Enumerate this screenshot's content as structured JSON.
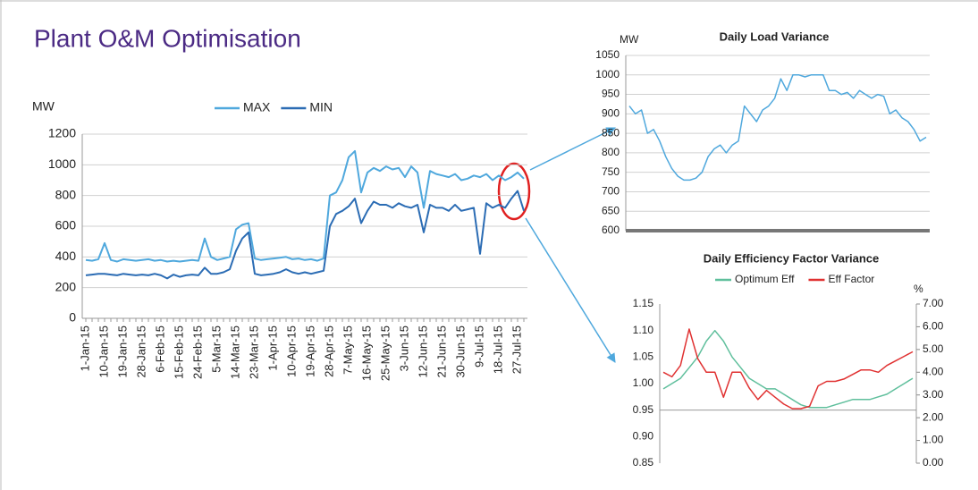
{
  "title": "Plant O&M Optimisation",
  "chart_data": [
    {
      "type": "line",
      "y_label": "MW",
      "legend": "top",
      "grid": true,
      "ylim": [
        0,
        1200
      ],
      "yticks": [
        0,
        200,
        400,
        600,
        800,
        1000,
        1200
      ],
      "categories": [
        "1-Jan-15",
        null,
        null,
        "10-Jan-15",
        null,
        null,
        "19-Jan-15",
        null,
        null,
        "28-Jan-15",
        null,
        null,
        "6-Feb-15",
        null,
        null,
        "15-Feb-15",
        null,
        null,
        "24-Feb-15",
        null,
        null,
        "5-Mar-15",
        null,
        null,
        "14-Mar-15",
        null,
        null,
        "23-Mar-15",
        null,
        null,
        "1-Apr-15",
        null,
        null,
        "10-Apr-15",
        null,
        null,
        "19-Apr-15",
        null,
        null,
        "28-Apr-15",
        null,
        null,
        "7-May-15",
        null,
        null,
        "16-May-15",
        null,
        null,
        "25-May-15",
        null,
        null,
        "3-Jun-15",
        null,
        null,
        "12-Jun-15",
        null,
        null,
        "21-Jun-15",
        null,
        null,
        "30-Jun-15",
        null,
        null,
        "9-Jul-15",
        null,
        null,
        "18-Jul-15",
        null,
        null,
        "27-Jul-15",
        null
      ],
      "series": [
        {
          "name": "MAX",
          "color": "#4fa8dd",
          "values": [
            380,
            375,
            385,
            490,
            380,
            370,
            385,
            380,
            375,
            380,
            385,
            375,
            380,
            370,
            375,
            370,
            375,
            380,
            375,
            520,
            400,
            380,
            390,
            400,
            580,
            610,
            620,
            390,
            380,
            385,
            390,
            395,
            400,
            385,
            390,
            380,
            385,
            375,
            390,
            800,
            820,
            900,
            1050,
            1090,
            820,
            950,
            980,
            960,
            990,
            970,
            980,
            920,
            990,
            950,
            720,
            960,
            940,
            930,
            920,
            940,
            900,
            910,
            930,
            920,
            940,
            900,
            930,
            900,
            920,
            950,
            910
          ]
        },
        {
          "name": "MIN",
          "color": "#2b6cb4",
          "values": [
            280,
            285,
            290,
            290,
            285,
            280,
            290,
            285,
            280,
            285,
            280,
            290,
            280,
            260,
            285,
            270,
            280,
            285,
            280,
            330,
            290,
            290,
            300,
            320,
            440,
            520,
            560,
            290,
            280,
            285,
            290,
            300,
            320,
            300,
            290,
            300,
            290,
            300,
            310,
            600,
            680,
            700,
            730,
            780,
            620,
            700,
            760,
            740,
            740,
            720,
            750,
            730,
            720,
            740,
            560,
            740,
            720,
            720,
            700,
            740,
            700,
            710,
            720,
            420,
            750,
            720,
            740,
            720,
            780,
            830,
            700
          ]
        }
      ]
    },
    {
      "type": "line",
      "title": "Daily Load Variance",
      "y_label": "MW",
      "grid": true,
      "color": "#4fa8dd",
      "ylim": [
        600,
        1050
      ],
      "yticks": [
        600,
        650,
        700,
        750,
        800,
        850,
        900,
        950,
        1000,
        1050
      ],
      "values": [
        920,
        900,
        910,
        850,
        860,
        830,
        790,
        760,
        740,
        730,
        730,
        735,
        750,
        790,
        810,
        820,
        800,
        820,
        830,
        920,
        900,
        880,
        910,
        920,
        940,
        990,
        960,
        1000,
        1000,
        995,
        1000,
        1000,
        1000,
        960,
        960,
        950,
        955,
        940,
        960,
        950,
        940,
        950,
        945,
        900,
        910,
        890,
        880,
        860,
        830,
        840
      ]
    },
    {
      "type": "line",
      "title": "Daily Efficiency Factor Variance",
      "y2_label": "%",
      "legend": "top",
      "grid": false,
      "x_axis_crossing": 0.95,
      "ylim": [
        0.85,
        1.15
      ],
      "yticks": [
        {
          "value": 0.85,
          "label": "0.85"
        },
        {
          "value": 0.9,
          "label": "0.90"
        },
        {
          "value": 0.95,
          "label": "0.95"
        },
        {
          "value": 1,
          "label": "1.00"
        },
        {
          "value": 1.05,
          "label": "1.05"
        },
        {
          "value": 1.1,
          "label": "1.10"
        },
        {
          "value": 1.15,
          "label": "1.15"
        }
      ],
      "y2lim": [
        0,
        7
      ],
      "y2ticks": [
        {
          "value": 0,
          "label": "0.00"
        },
        {
          "value": 1,
          "label": "1.00"
        },
        {
          "value": 2,
          "label": "2.00"
        },
        {
          "value": 3,
          "label": "3.00"
        },
        {
          "value": 4,
          "label": "4.00"
        },
        {
          "value": 5,
          "label": "5.00"
        },
        {
          "value": 6,
          "label": "6.00"
        },
        {
          "value": 7,
          "label": "7.00"
        }
      ],
      "series": [
        {
          "name": "Optimum Eff",
          "color": "#5fbf9c",
          "values": [
            0.99,
            1.0,
            1.01,
            1.03,
            1.05,
            1.08,
            1.1,
            1.08,
            1.05,
            1.03,
            1.01,
            1.0,
            0.99,
            0.99,
            0.98,
            0.97,
            0.96,
            0.955,
            0.955,
            0.955,
            0.96,
            0.965,
            0.97,
            0.97,
            0.97,
            0.975,
            0.98,
            0.99,
            1.0,
            1.01
          ]
        },
        {
          "name": "Eff Factor",
          "color": "#e03131",
          "axis": "y2",
          "values": [
            4.0,
            3.8,
            4.3,
            5.9,
            4.6,
            4.0,
            4.0,
            2.9,
            4.0,
            4.0,
            3.3,
            2.8,
            3.2,
            2.9,
            2.6,
            2.4,
            2.4,
            2.5,
            3.4,
            3.6,
            3.6,
            3.7,
            3.9,
            4.1,
            4.1,
            4.0,
            4.3,
            4.5,
            4.7,
            4.9
          ]
        }
      ]
    }
  ]
}
